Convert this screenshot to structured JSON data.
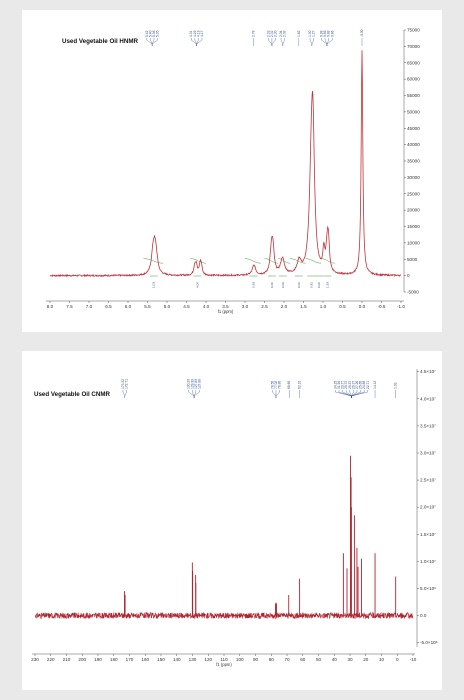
{
  "chart_data": [
    {
      "type": "line",
      "title": "Used Vegetable Oil HNMR",
      "xlabel": "f1 (ppm)",
      "ylabel": "",
      "x_reversed": true,
      "xlim": [
        -1.0,
        8.0
      ],
      "ylim": [
        -5000,
        75000
      ],
      "x_ticks": [
        "8.0",
        "7.5",
        "7.0",
        "6.5",
        "6.0",
        "5.5",
        "5.0",
        "4.5",
        "4.0",
        "3.5",
        "3.0",
        "2.5",
        "2.0",
        "1.5",
        "1.0",
        "0.5",
        "0.0",
        "-0.5",
        "-1.0"
      ],
      "x_tick_values": [
        8.0,
        7.5,
        7.0,
        6.5,
        6.0,
        5.5,
        5.0,
        4.5,
        4.0,
        3.5,
        3.0,
        2.5,
        2.0,
        1.5,
        1.0,
        0.5,
        0.0,
        -0.5,
        -1.0
      ],
      "y_ticks": [
        "75000",
        "70000",
        "65000",
        "60000",
        "55000",
        "50000",
        "45000",
        "40000",
        "35000",
        "30000",
        "25000",
        "20000",
        "15000",
        "10000",
        "5000",
        "0",
        "-5000"
      ],
      "y_tick_values": [
        75000,
        70000,
        65000,
        60000,
        55000,
        50000,
        45000,
        40000,
        35000,
        30000,
        25000,
        20000,
        15000,
        10000,
        5000,
        0,
        -5000
      ],
      "peaks": [
        {
          "x": 5.36,
          "y": 5200,
          "w": 0.05
        },
        {
          "x": 5.32,
          "y": 6000,
          "w": 0.05
        },
        {
          "x": 5.28,
          "y": 4500,
          "w": 0.05
        },
        {
          "x": 4.29,
          "y": 2600,
          "w": 0.03
        },
        {
          "x": 4.25,
          "y": 3000,
          "w": 0.03
        },
        {
          "x": 4.15,
          "y": 2900,
          "w": 0.03
        },
        {
          "x": 4.12,
          "y": 2500,
          "w": 0.03
        },
        {
          "x": 2.77,
          "y": 3000,
          "w": 0.05
        },
        {
          "x": 2.33,
          "y": 4600,
          "w": 0.04
        },
        {
          "x": 2.3,
          "y": 5100,
          "w": 0.04
        },
        {
          "x": 2.28,
          "y": 4400,
          "w": 0.04
        },
        {
          "x": 2.04,
          "y": 4900,
          "w": 0.06
        },
        {
          "x": 1.61,
          "y": 3800,
          "w": 0.06
        },
        {
          "x": 1.3,
          "y": 25000,
          "w": 0.06
        },
        {
          "x": 1.26,
          "y": 37500,
          "w": 0.05
        },
        {
          "x": 0.98,
          "y": 6200,
          "w": 0.03
        },
        {
          "x": 0.89,
          "y": 8700,
          "w": 0.04
        },
        {
          "x": 0.86,
          "y": 6900,
          "w": 0.03
        },
        {
          "x": 0.0,
          "y": 68500,
          "w": 0.025
        }
      ],
      "peak_labels": [
        "5.42",
        "5.40",
        "5.36",
        "5.35",
        "4.31",
        "4.29",
        "4.19",
        "4.17",
        "2.78",
        "2.33",
        "2.32",
        "2.30",
        "2.04",
        "2.02",
        "1.62",
        "1.30",
        "1.27",
        "0.98",
        "0.89",
        "0.88",
        "0.86",
        "-0.00"
      ],
      "peak_label_groups": [
        {
          "x": 5.38,
          "labels": [
            "5.42",
            "5.40",
            "5.36",
            "5.35"
          ]
        },
        {
          "x": 4.24,
          "labels": [
            "4.31",
            "4.29",
            "4.19",
            "4.17"
          ]
        },
        {
          "x": 2.78,
          "labels": [
            "2.78"
          ]
        },
        {
          "x": 2.31,
          "labels": [
            "2.33",
            "2.32",
            "2.30"
          ]
        },
        {
          "x": 2.03,
          "labels": [
            "2.04",
            "2.02"
          ]
        },
        {
          "x": 1.62,
          "labels": [
            "1.62"
          ]
        },
        {
          "x": 1.285,
          "labels": [
            "1.30",
            "1.27"
          ]
        },
        {
          "x": 0.9,
          "labels": [
            "0.98",
            "0.89",
            "0.88",
            "0.86"
          ]
        },
        {
          "x": 0.0,
          "labels": [
            "-0.00"
          ]
        }
      ],
      "integrals": [
        {
          "x": 5.34,
          "label": "1.03"
        },
        {
          "x": 4.22,
          "label": "4.00"
        },
        {
          "x": 2.78,
          "label": "0.93"
        },
        {
          "x": 2.31,
          "label": "6.00"
        },
        {
          "x": 2.03,
          "label": "6.00"
        },
        {
          "x": 1.62,
          "label": "6.00"
        },
        {
          "x": 1.3,
          "label": "0.81"
        },
        {
          "x": 1.1,
          "label": "6.00"
        },
        {
          "x": 0.89,
          "label": "1.53"
        }
      ]
    },
    {
      "type": "line",
      "title": "Used Vegetable Oil CNMR",
      "xlabel": "f1 (ppm)",
      "ylabel": "",
      "x_reversed": true,
      "xlim": [
        -10,
        230
      ],
      "ylim": [
        -5.8,
        45.5
      ],
      "x_ticks": [
        "230",
        "220",
        "210",
        "200",
        "190",
        "180",
        "170",
        "160",
        "150",
        "140",
        "130",
        "120",
        "110",
        "100",
        "90",
        "80",
        "70",
        "60",
        "50",
        "40",
        "30",
        "20",
        "10",
        "0",
        "-10"
      ],
      "x_tick_values": [
        230,
        220,
        210,
        200,
        190,
        180,
        170,
        160,
        150,
        140,
        130,
        120,
        110,
        100,
        90,
        80,
        70,
        60,
        50,
        40,
        30,
        20,
        10,
        0,
        -10
      ],
      "y_ticks": [
        "4.5×10⁷",
        "4.0×10⁷",
        "3.5×10⁷",
        "3.0×10⁷",
        "2.5×10⁷",
        "2.0×10⁷",
        "1.5×10⁷",
        "1.0×10⁷",
        "5.0×10⁶",
        "0.0",
        "-5.0×10⁶"
      ],
      "y_tick_values": [
        45,
        40,
        35,
        30,
        25,
        20,
        15,
        10,
        5,
        0,
        -5
      ],
      "peaks": [
        {
          "x": 173.2,
          "y": 4.5
        },
        {
          "x": 172.8,
          "y": 3.8
        },
        {
          "x": 130.1,
          "y": 9.8
        },
        {
          "x": 129.9,
          "y": 8.2
        },
        {
          "x": 128.0,
          "y": 7.5
        },
        {
          "x": 127.9,
          "y": 6.0
        },
        {
          "x": 77.3,
          "y": 2.2
        },
        {
          "x": 77.0,
          "y": 2.4
        },
        {
          "x": 76.7,
          "y": 2.2
        },
        {
          "x": 68.9,
          "y": 3.8
        },
        {
          "x": 62.0,
          "y": 6.8
        },
        {
          "x": 34.2,
          "y": 11.5
        },
        {
          "x": 31.9,
          "y": 8.7
        },
        {
          "x": 29.7,
          "y": 29.5
        },
        {
          "x": 29.3,
          "y": 25.5
        },
        {
          "x": 29.1,
          "y": 20.0
        },
        {
          "x": 27.2,
          "y": 18.5
        },
        {
          "x": 25.6,
          "y": 12.5
        },
        {
          "x": 24.9,
          "y": 9.0
        },
        {
          "x": 22.7,
          "y": 10.5
        },
        {
          "x": 14.1,
          "y": 11.5
        },
        {
          "x": 1.0,
          "y": 7.2
        }
      ],
      "peak_labels": [
        "173.32",
        "172.71",
        "130.20",
        "129.99",
        "127.89",
        "127.88",
        "78.55",
        "77.02",
        "76.80",
        "68.60",
        "62.10",
        "34.25",
        "31.94",
        "29.77",
        "29.72",
        "29.57",
        "29.37",
        "27.26",
        "25.65",
        "24.89",
        "22.71",
        "14.12",
        "1.03"
      ],
      "peak_label_groups": [
        {
          "x": 173.0,
          "labels": [
            "173.32",
            "172.71"
          ]
        },
        {
          "x": 129.0,
          "labels": [
            "130.20",
            "129.99",
            "127.89",
            "127.88"
          ]
        },
        {
          "x": 77.0,
          "labels": [
            "78.55",
            "77.02",
            "76.80"
          ]
        },
        {
          "x": 68.6,
          "labels": [
            "68.60"
          ]
        },
        {
          "x": 62.1,
          "labels": [
            "62.10"
          ]
        },
        {
          "x": 29.0,
          "labels": [
            "34.25",
            "31.94",
            "29.77",
            "29.72",
            "29.57",
            "29.37",
            "27.26",
            "25.65",
            "24.89",
            "22.71"
          ]
        },
        {
          "x": 14.1,
          "labels": [
            "14.12"
          ]
        },
        {
          "x": 1.03,
          "labels": [
            "1.03"
          ]
        }
      ]
    }
  ],
  "colors": {
    "spectrum": "#b02430",
    "hnmr_line": "#c0333d",
    "integral_curve": "#3d9a3d",
    "label_blue": "#2c4b8f",
    "panel_bg": "#ffffff",
    "page_bg": "#e9e9e9"
  }
}
